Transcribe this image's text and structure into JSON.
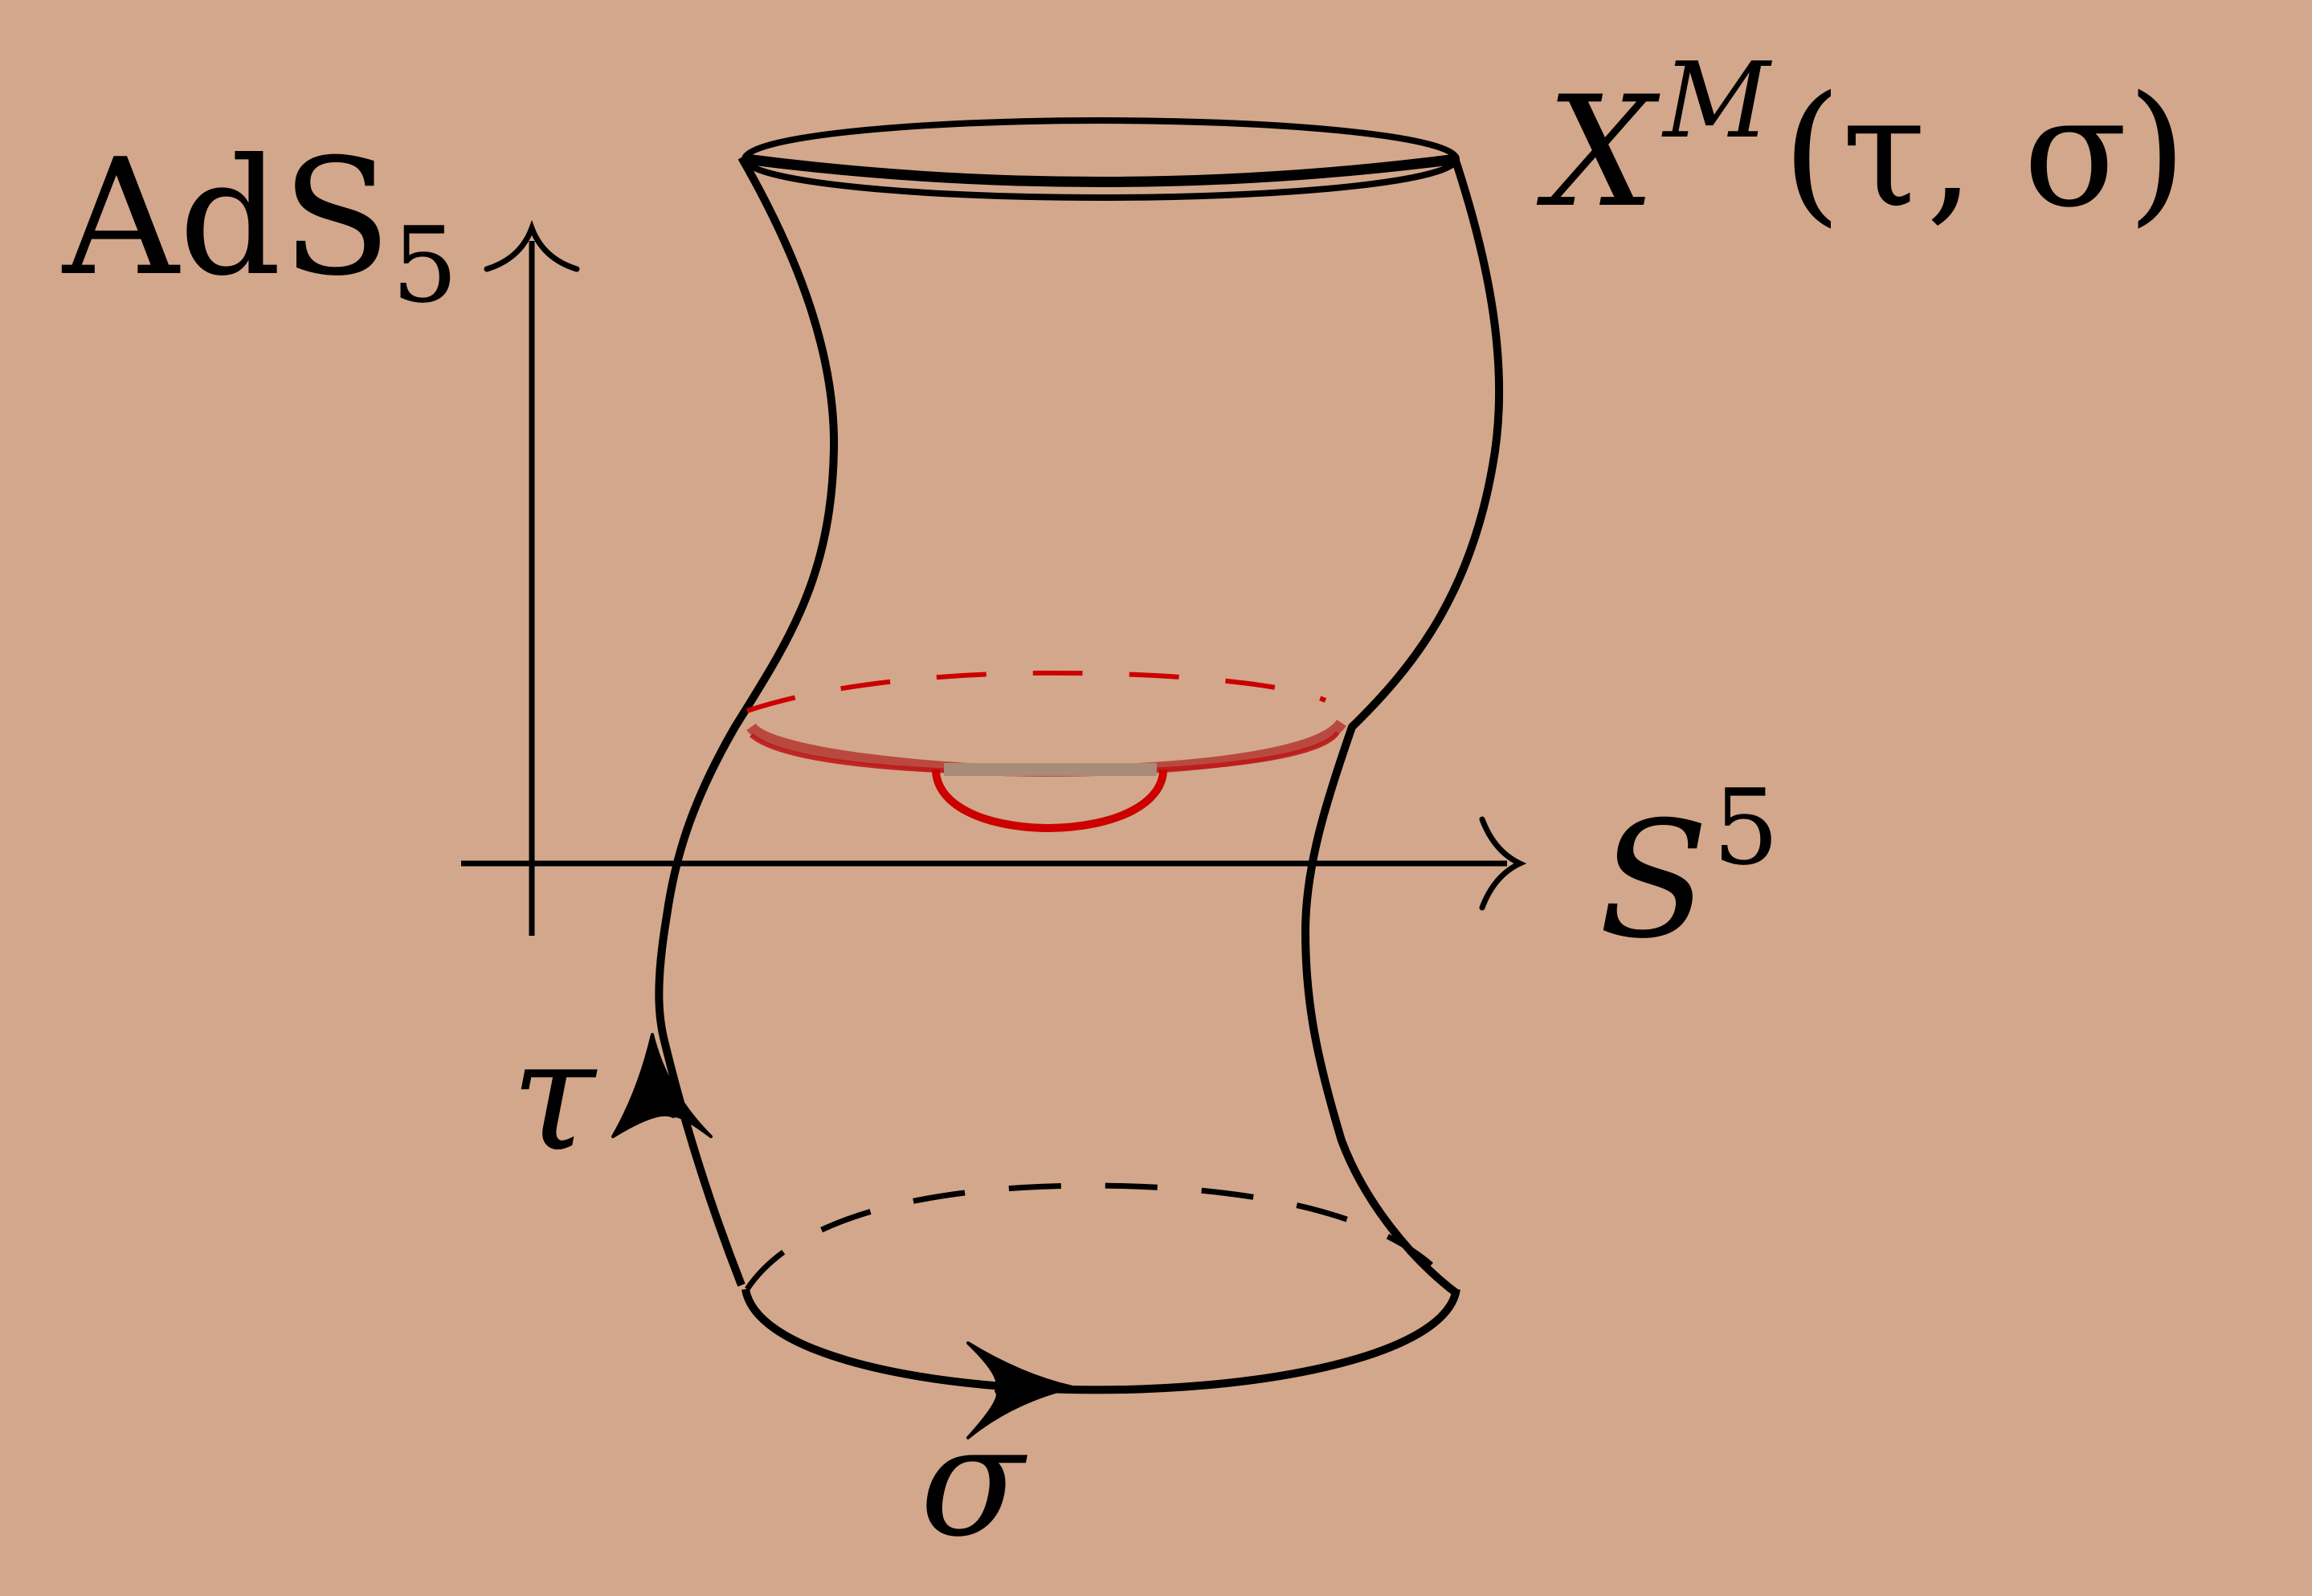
{
  "background_color": "#d3a78b",
  "stroke_color": "#000000",
  "highlight_color": "#cc0000",
  "labels": {
    "ads": {
      "base": "AdS",
      "sub": "5"
    },
    "sphere": {
      "base": "S",
      "sup": "5"
    },
    "embedding": {
      "base": "X",
      "sup": "M",
      "args": "(τ, σ)"
    },
    "tau": "τ",
    "sigma": "σ"
  }
}
